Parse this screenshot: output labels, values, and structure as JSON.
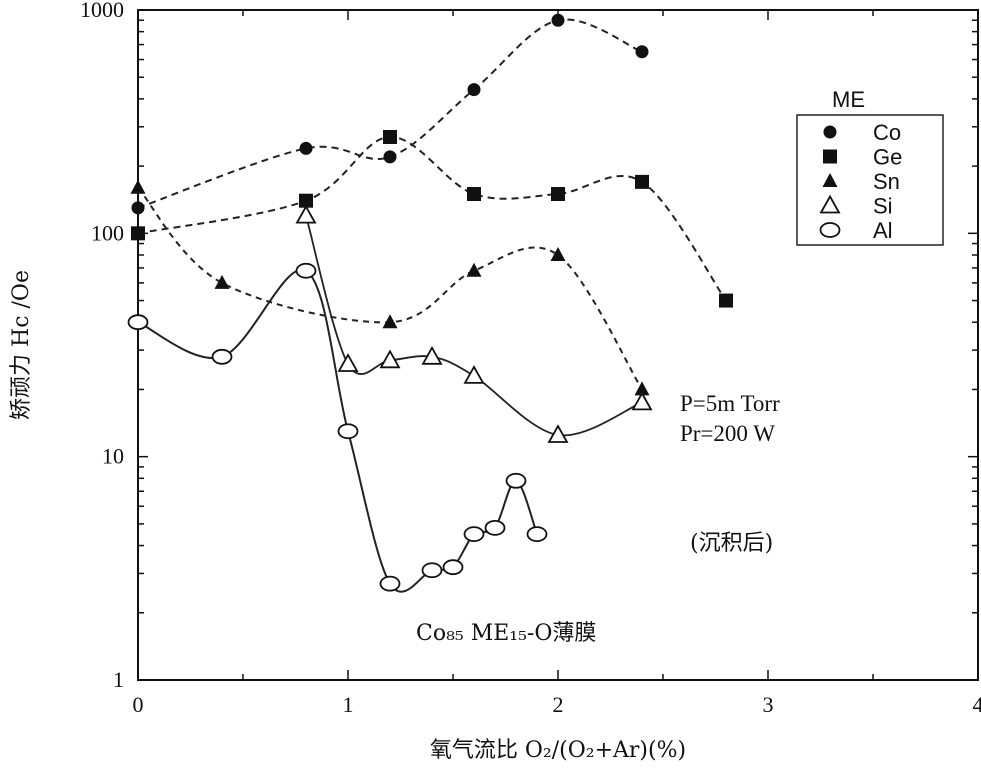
{
  "chart_data": {
    "type": "scatter",
    "title": "",
    "xlabel": "氧气流比 O₂/(O₂+Ar)(%)",
    "ylabel": "矫顽力 Hc /Oe",
    "xlim": [
      0,
      4
    ],
    "ylim": [
      1,
      1000
    ],
    "yscale": "log",
    "x_ticks": [
      "0",
      "1",
      "2",
      "3",
      "4"
    ],
    "y_ticks": [
      "1",
      "10",
      "100",
      "1000"
    ],
    "legend_title": "ME",
    "legend_position": "top-right",
    "grid": false,
    "series": [
      {
        "name": "Co",
        "marker": "filled-circle",
        "x": [
          0,
          0.8,
          1.2,
          1.6,
          2.0,
          2.4
        ],
        "y": [
          130,
          240,
          220,
          440,
          900,
          650
        ]
      },
      {
        "name": "Ge",
        "marker": "filled-square",
        "x": [
          0,
          0.8,
          1.2,
          1.6,
          2.0,
          2.4,
          2.8
        ],
        "y": [
          100,
          140,
          270,
          150,
          150,
          170,
          50
        ]
      },
      {
        "name": "Sn",
        "marker": "filled-triangle",
        "x": [
          0,
          0.4,
          1.2,
          1.6,
          2.0,
          2.4
        ],
        "y": [
          160,
          60,
          40,
          68,
          80,
          20
        ]
      },
      {
        "name": "Si",
        "marker": "open-triangle",
        "x": [
          0.8,
          1.0,
          1.2,
          1.4,
          1.6,
          2.0,
          2.4
        ],
        "y": [
          120,
          26,
          27,
          28,
          23,
          12.5,
          17.5
        ]
      },
      {
        "name": "Al",
        "marker": "open-circle",
        "x": [
          0,
          0.4,
          0.8,
          1.0,
          1.2,
          1.4,
          1.5,
          1.6,
          1.7,
          1.8,
          1.9
        ],
        "y": [
          40,
          28,
          68,
          13,
          2.7,
          3.1,
          3.2,
          4.5,
          4.8,
          7.8,
          4.5
        ]
      }
    ],
    "annotations": [
      {
        "id": "pressure",
        "text": "P=5m Torr"
      },
      {
        "id": "power",
        "text": "Pr=200 W"
      },
      {
        "id": "state",
        "text": "(沉积后)"
      },
      {
        "id": "film",
        "text": "Co₈₅ ME₁₅-O薄膜"
      }
    ]
  }
}
